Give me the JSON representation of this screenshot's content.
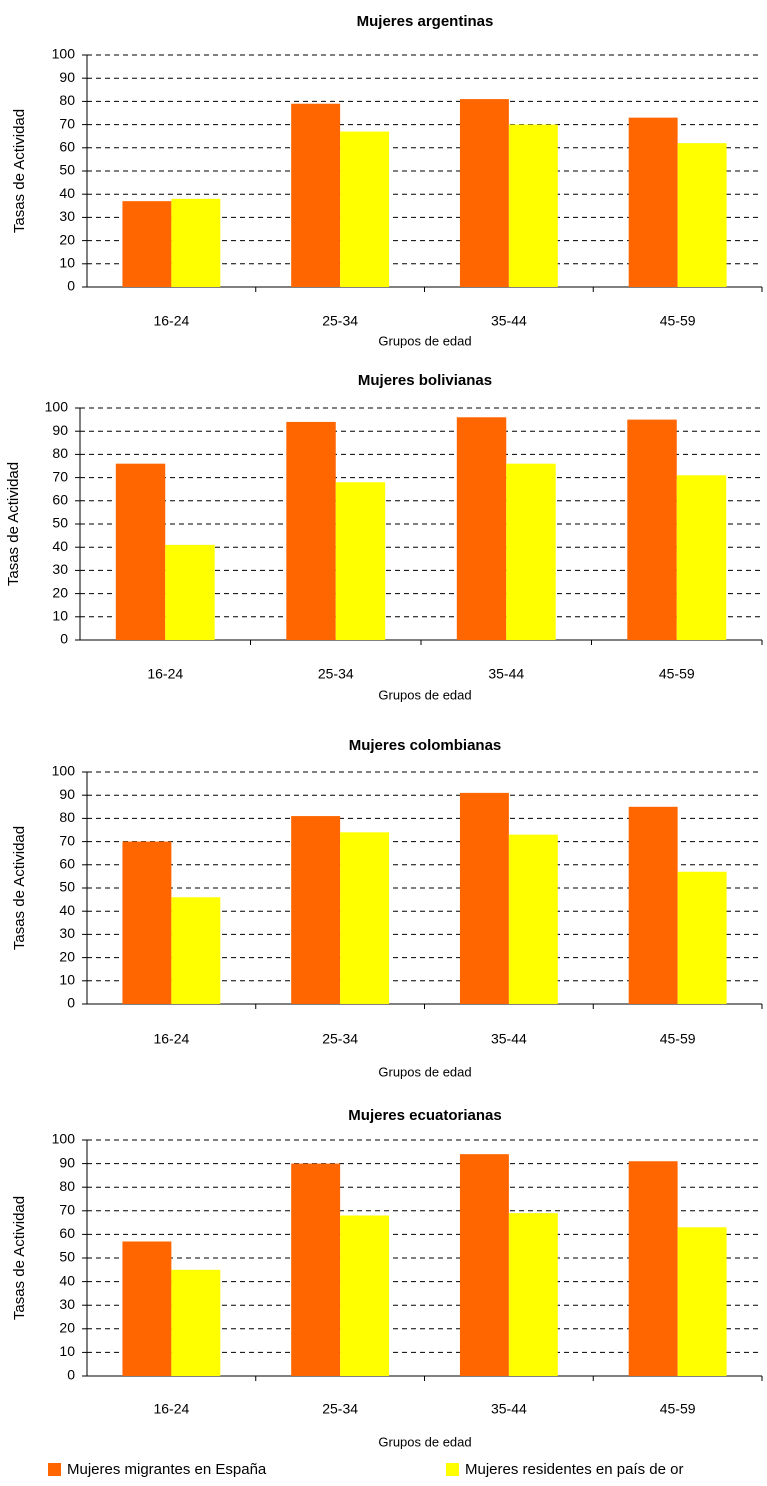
{
  "chart_data": [
    {
      "type": "bar",
      "title": "Mujeres argentinas",
      "x_label": "Grupos de edad",
      "y_label": "Tasas de Actividad",
      "categories": [
        "16-24",
        "25-34",
        "35-44",
        "45-59"
      ],
      "series": [
        {
          "name": "Mujeres migrantes en España",
          "color": "#ff6600",
          "values": [
            37,
            79,
            81,
            73
          ]
        },
        {
          "name": "Mujeres residentes en país de or",
          "color": "#ffff00",
          "values": [
            38,
            67,
            70,
            62
          ]
        }
      ],
      "ylim": [
        0,
        100
      ],
      "yticks": [
        0,
        10,
        20,
        30,
        40,
        50,
        60,
        70,
        80,
        90,
        100
      ],
      "grid": true,
      "legend": "bottom"
    },
    {
      "type": "bar",
      "title": "Mujeres bolivianas",
      "x_label": "Grupos de edad",
      "y_label": "Tasas de Actividad",
      "categories": [
        "16-24",
        "25-34",
        "35-44",
        "45-59"
      ],
      "series": [
        {
          "name": "Mujeres migrantes en España",
          "color": "#ff6600",
          "values": [
            76,
            94,
            96,
            95
          ]
        },
        {
          "name": "Mujeres residentes en país de or",
          "color": "#ffff00",
          "values": [
            41,
            68,
            76,
            71
          ]
        }
      ],
      "ylim": [
        0,
        100
      ],
      "yticks": [
        0,
        10,
        20,
        30,
        40,
        50,
        60,
        70,
        80,
        90,
        100
      ],
      "grid": true
    },
    {
      "type": "bar",
      "title": "Mujeres colombianas",
      "x_label": "Grupos de edad",
      "y_label": "Tasas de Actividad",
      "categories": [
        "16-24",
        "25-34",
        "35-44",
        "45-59"
      ],
      "series": [
        {
          "name": "Mujeres migrantes en España",
          "color": "#ff6600",
          "values": [
            70,
            81,
            91,
            85
          ]
        },
        {
          "name": "Mujeres residentes en país de or",
          "color": "#ffff00",
          "values": [
            46,
            74,
            73,
            57
          ]
        }
      ],
      "ylim": [
        0,
        100
      ],
      "yticks": [
        0,
        10,
        20,
        30,
        40,
        50,
        60,
        70,
        80,
        90,
        100
      ],
      "grid": true
    },
    {
      "type": "bar",
      "title": "Mujeres ecuatorianas",
      "x_label": "Grupos de edad",
      "y_label": "Tasas de Actividad",
      "categories": [
        "16-24",
        "25-34",
        "35-44",
        "45-59"
      ],
      "series": [
        {
          "name": "Mujeres migrantes en España",
          "color": "#ff6600",
          "values": [
            57,
            90,
            94,
            91
          ]
        },
        {
          "name": "Mujeres residentes en país de or",
          "color": "#ffff00",
          "values": [
            45,
            68,
            69,
            63
          ]
        }
      ],
      "ylim": [
        0,
        100
      ],
      "yticks": [
        0,
        10,
        20,
        30,
        40,
        50,
        60,
        70,
        80,
        90,
        100
      ],
      "grid": true
    }
  ]
}
